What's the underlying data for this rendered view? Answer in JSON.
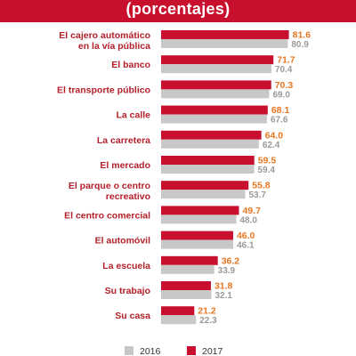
{
  "header": {
    "subtitle": "(porcentajes)",
    "bg_color": "#c8102e"
  },
  "chart_data": {
    "type": "bar",
    "orientation": "horizontal",
    "subtitle": "(porcentajes)",
    "categories": [
      [
        "El cajero automático",
        "en la vía pública"
      ],
      [
        "El banco"
      ],
      [
        "El transporte público"
      ],
      [
        "La calle"
      ],
      [
        "La carretera"
      ],
      [
        "El mercado"
      ],
      [
        "El parque o centro",
        "recreativo"
      ],
      [
        "El centro comercial"
      ],
      [
        "El automóvil"
      ],
      [
        "La escuela"
      ],
      [
        "Su trabajo"
      ],
      [
        "Su casa"
      ]
    ],
    "series": [
      {
        "name": "2017",
        "color": "#c8102e",
        "label_color": "#e87722",
        "values": [
          81.6,
          71.7,
          70.3,
          68.1,
          64.0,
          59.5,
          55.8,
          49.7,
          46.0,
          36.2,
          31.8,
          21.2
        ],
        "labels": [
          "81.6",
          "71.7",
          "70.3",
          "68.1",
          "64.0",
          "59.5",
          "55.8",
          "49.7",
          "46.0",
          "36.2",
          "31.8",
          "21.2"
        ]
      },
      {
        "name": "2016",
        "color": "#c8c8c8",
        "label_color": "#9a9a9a",
        "values": [
          80.9,
          70.4,
          69.0,
          67.6,
          62.4,
          59.4,
          53.7,
          48.0,
          46.1,
          33.9,
          32.1,
          22.3
        ],
        "labels": [
          "80.9",
          "70.4",
          "69.0",
          "67.6",
          "62.4",
          "59.4",
          "53.7",
          "48.0",
          "46.1",
          "33.9",
          "32.1",
          "22.3"
        ]
      }
    ],
    "xlim": [
      0,
      100
    ],
    "grid": false,
    "legend_position": "bottom"
  }
}
